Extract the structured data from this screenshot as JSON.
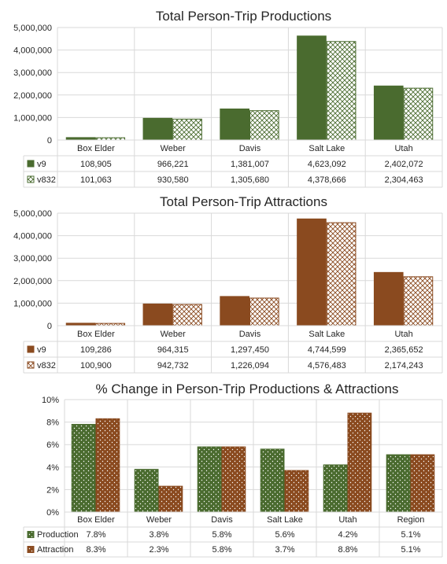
{
  "colors": {
    "green": "#4a6b2f",
    "brown": "#8a4a1f",
    "gridline": "#d9d9d9",
    "text": "#262626"
  },
  "chart_data": [
    {
      "type": "bar",
      "title": "Total Person-Trip Productions",
      "categories": [
        "Box Elder",
        "Weber",
        "Davis",
        "Salt Lake",
        "Utah"
      ],
      "ylim": [
        0,
        5000000
      ],
      "yticks": [
        "0",
        "1,000,000",
        "2,000,000",
        "3,000,000",
        "4,000,000",
        "5,000,000"
      ],
      "grid": true,
      "legend": "data-table",
      "series": [
        {
          "name": "v9",
          "color": "#4a6b2f",
          "pattern": "solid",
          "values": [
            108905,
            966221,
            1381007,
            4623092,
            2402072
          ],
          "labels": [
            "108,905",
            "966,221",
            "1,381,007",
            "4,623,092",
            "2,402,072"
          ]
        },
        {
          "name": "v832",
          "color": "#4a6b2f",
          "pattern": "crosshatch",
          "values": [
            101063,
            930580,
            1305680,
            4378666,
            2304463
          ],
          "labels": [
            "101,063",
            "930,580",
            "1,305,680",
            "4,378,666",
            "2,304,463"
          ]
        }
      ]
    },
    {
      "type": "bar",
      "title": "Total Person-Trip Attractions",
      "categories": [
        "Box Elder",
        "Weber",
        "Davis",
        "Salt Lake",
        "Utah"
      ],
      "ylim": [
        0,
        5000000
      ],
      "yticks": [
        "0",
        "1,000,000",
        "2,000,000",
        "3,000,000",
        "4,000,000",
        "5,000,000"
      ],
      "grid": true,
      "legend": "data-table",
      "series": [
        {
          "name": "v9",
          "color": "#8a4a1f",
          "pattern": "solid",
          "values": [
            109286,
            964315,
            1297450,
            4744599,
            2365652
          ],
          "labels": [
            "109,286",
            "964,315",
            "1,297,450",
            "4,744,599",
            "2,365,652"
          ]
        },
        {
          "name": "v832",
          "color": "#8a4a1f",
          "pattern": "crosshatch",
          "values": [
            100900,
            942732,
            1226094,
            4576483,
            2174243
          ],
          "labels": [
            "100,900",
            "942,732",
            "1,226,094",
            "4,576,483",
            "2,174,243"
          ]
        }
      ]
    },
    {
      "type": "bar",
      "title": "% Change in Person-Trip Productions & Attractions",
      "categories": [
        "Box Elder",
        "Weber",
        "Davis",
        "Salt Lake",
        "Utah",
        "Region"
      ],
      "ylim": [
        0,
        10
      ],
      "yticks": [
        "0%",
        "2%",
        "4%",
        "6%",
        "8%",
        "10%"
      ],
      "grid": true,
      "legend": "data-table",
      "series": [
        {
          "name": "Production",
          "color": "#4a6b2f",
          "pattern": "dots",
          "values": [
            7.8,
            3.8,
            5.8,
            5.6,
            4.2,
            5.1
          ],
          "labels": [
            "7.8%",
            "3.8%",
            "5.8%",
            "5.6%",
            "4.2%",
            "5.1%"
          ]
        },
        {
          "name": "Attraction",
          "color": "#8a4a1f",
          "pattern": "dots",
          "values": [
            8.3,
            2.3,
            5.8,
            3.7,
            8.8,
            5.1
          ],
          "labels": [
            "8.3%",
            "2.3%",
            "5.8%",
            "3.7%",
            "8.8%",
            "5.1%"
          ]
        }
      ]
    }
  ]
}
